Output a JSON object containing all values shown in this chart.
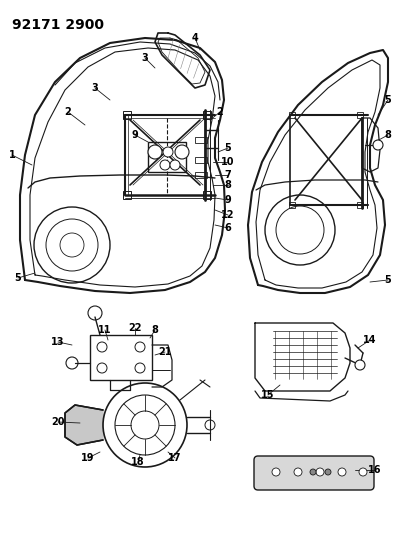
{
  "title": "92171 2900",
  "bg_color": "#ffffff",
  "line_color": "#1a1a1a",
  "text_color": "#000000",
  "title_fontsize": 10,
  "label_fontsize": 7,
  "figsize": [
    3.96,
    5.33
  ],
  "dpi": 100
}
